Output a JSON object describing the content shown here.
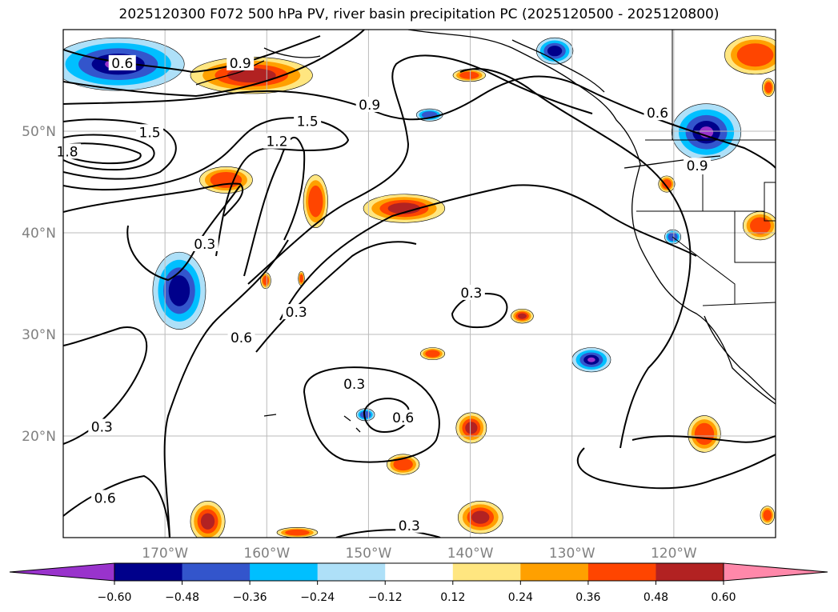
{
  "title": "2025120300 F072 500 hPa PV, river basin precipitation PC (2025120500 - 2025120800)",
  "map": {
    "lon_range": [
      -180,
      -110
    ],
    "lat_range": [
      10,
      60
    ],
    "lat_ticks": [
      {
        "value": 50,
        "label": "50°N"
      },
      {
        "value": 40,
        "label": "40°N"
      },
      {
        "value": 30,
        "label": "30°N"
      },
      {
        "value": 20,
        "label": "20°N"
      }
    ],
    "lon_ticks": [
      {
        "value": -170,
        "label": "170°W"
      },
      {
        "value": -160,
        "label": "160°W"
      },
      {
        "value": -150,
        "label": "150°W"
      },
      {
        "value": -140,
        "label": "140°W"
      },
      {
        "value": -130,
        "label": "130°W"
      },
      {
        "value": -120,
        "label": "120°W"
      }
    ],
    "gridlines": true,
    "tick_label_color": "#808080"
  },
  "colorbar": {
    "orientation": "horizontal",
    "extend": "both",
    "levels": [
      -0.6,
      -0.48,
      -0.36,
      -0.24,
      -0.12,
      0.12,
      0.24,
      0.36,
      0.48,
      0.6
    ],
    "tick_labels": [
      "−0.60",
      "−0.48",
      "−0.36",
      "−0.24",
      "−0.12",
      "0.12",
      "0.24",
      "0.36",
      "0.48",
      "0.60"
    ],
    "colors": [
      "#9933cc",
      "#00008b",
      "#3355cc",
      "#00bfff",
      "#aee0f8",
      "#ffffff",
      "#ffe680",
      "#ffa000",
      "#ff4500",
      "#b22222",
      "#ff88aa"
    ]
  },
  "contour_labels": [
    {
      "text": "0.6",
      "lon": -174.2,
      "lat": 56.7
    },
    {
      "text": "0.9",
      "lon": -162.6,
      "lat": 56.7
    },
    {
      "text": "1.5",
      "lon": -171.5,
      "lat": 49.9
    },
    {
      "text": "1.8",
      "lon": -179.6,
      "lat": 48.0
    },
    {
      "text": "1.2",
      "lon": -159.0,
      "lat": 49.0
    },
    {
      "text": "1.5",
      "lon": -156.0,
      "lat": 51.0
    },
    {
      "text": "0.9",
      "lon": -149.9,
      "lat": 52.6
    },
    {
      "text": "0.6",
      "lon": -121.6,
      "lat": 51.8
    },
    {
      "text": "0.9",
      "lon": -117.7,
      "lat": 46.6
    },
    {
      "text": "0.3",
      "lon": -166.1,
      "lat": 38.9
    },
    {
      "text": "0.3",
      "lon": -157.1,
      "lat": 32.2
    },
    {
      "text": "0.6",
      "lon": -162.5,
      "lat": 29.7
    },
    {
      "text": "0.3",
      "lon": -139.9,
      "lat": 34.1
    },
    {
      "text": "0.3",
      "lon": -151.4,
      "lat": 25.1
    },
    {
      "text": "0.6",
      "lon": -146.6,
      "lat": 21.8
    },
    {
      "text": "0.3",
      "lon": -176.2,
      "lat": 20.9
    },
    {
      "text": "0.6",
      "lon": -175.9,
      "lat": 13.9
    },
    {
      "text": "0.3",
      "lon": -146.0,
      "lat": 11.2
    }
  ],
  "anomaly_regions": [
    {
      "value": -0.6,
      "lon": -174.6,
      "lat": 56.6,
      "rlon": 6.5,
      "rlat": 2.6
    },
    {
      "value": 0.48,
      "lon": -161.5,
      "lat": 55.5,
      "rlon": 6.0,
      "rlat": 1.8
    },
    {
      "value": -0.48,
      "lon": -168.6,
      "lat": 34.3,
      "rlon": 2.6,
      "rlat": 3.8
    },
    {
      "value": 0.36,
      "lon": -164.0,
      "lat": 45.2,
      "rlon": 2.6,
      "rlat": 1.3
    },
    {
      "value": 0.36,
      "lon": -155.2,
      "lat": 43.1,
      "rlon": 1.2,
      "rlat": 2.6
    },
    {
      "value": 0.48,
      "lon": -146.5,
      "lat": 42.4,
      "rlon": 4.0,
      "rlat": 1.4
    },
    {
      "value": -0.48,
      "lon": -131.7,
      "lat": 57.9,
      "rlon": 1.8,
      "rlat": 1.3
    },
    {
      "value": -0.36,
      "lon": -144.0,
      "lat": 51.6,
      "rlon": 1.3,
      "rlat": 0.6
    },
    {
      "value": 0.36,
      "lon": -140.1,
      "lat": 55.5,
      "rlon": 1.6,
      "rlat": 0.6
    },
    {
      "value": -0.6,
      "lon": -116.8,
      "lat": 49.9,
      "rlon": 3.4,
      "rlat": 2.8
    },
    {
      "value": 0.36,
      "lon": -112.0,
      "lat": 57.5,
      "rlon": 3.0,
      "rlat": 1.9
    },
    {
      "value": 0.36,
      "lon": -111.5,
      "lat": 40.7,
      "rlon": 1.7,
      "rlat": 1.4
    },
    {
      "value": 0.36,
      "lon": -120.7,
      "lat": 44.8,
      "rlon": 0.8,
      "rlat": 0.8
    },
    {
      "value": -0.36,
      "lon": -120.1,
      "lat": 39.6,
      "rlon": 0.8,
      "rlat": 0.7
    },
    {
      "value": 0.48,
      "lon": -134.9,
      "lat": 31.8,
      "rlon": 1.1,
      "rlat": 0.7
    },
    {
      "value": -0.6,
      "lon": -128.1,
      "lat": 27.5,
      "rlon": 1.9,
      "rlat": 1.2
    },
    {
      "value": 0.36,
      "lon": -143.7,
      "lat": 28.1,
      "rlon": 1.2,
      "rlat": 0.6
    },
    {
      "value": 0.48,
      "lon": -139.9,
      "lat": 20.8,
      "rlon": 1.5,
      "rlat": 1.5
    },
    {
      "value": 0.36,
      "lon": -146.6,
      "lat": 17.2,
      "rlon": 1.6,
      "rlat": 1.0
    },
    {
      "value": -0.36,
      "lon": -150.3,
      "lat": 22.1,
      "rlon": 0.9,
      "rlat": 0.6
    },
    {
      "value": 0.36,
      "lon": -117.0,
      "lat": 20.2,
      "rlon": 1.6,
      "rlat": 1.8
    },
    {
      "value": 0.48,
      "lon": -139.0,
      "lat": 12.0,
      "rlon": 2.2,
      "rlat": 1.6
    },
    {
      "value": 0.48,
      "lon": -165.8,
      "lat": 11.6,
      "rlon": 1.7,
      "rlat": 2.0
    },
    {
      "value": 0.36,
      "lon": -157.0,
      "lat": 10.5,
      "rlon": 2.0,
      "rlat": 0.5
    },
    {
      "value": 0.36,
      "lon": -110.8,
      "lat": 12.2,
      "rlon": 0.7,
      "rlat": 0.9
    },
    {
      "value": 0.36,
      "lon": -110.7,
      "lat": 54.3,
      "rlon": 0.6,
      "rlat": 0.9
    },
    {
      "value": 0.36,
      "lon": -160.1,
      "lat": 35.3,
      "rlon": 0.5,
      "rlat": 0.8
    },
    {
      "value": 0.36,
      "lon": -156.6,
      "lat": 35.5,
      "rlon": 0.3,
      "rlat": 0.7
    }
  ]
}
